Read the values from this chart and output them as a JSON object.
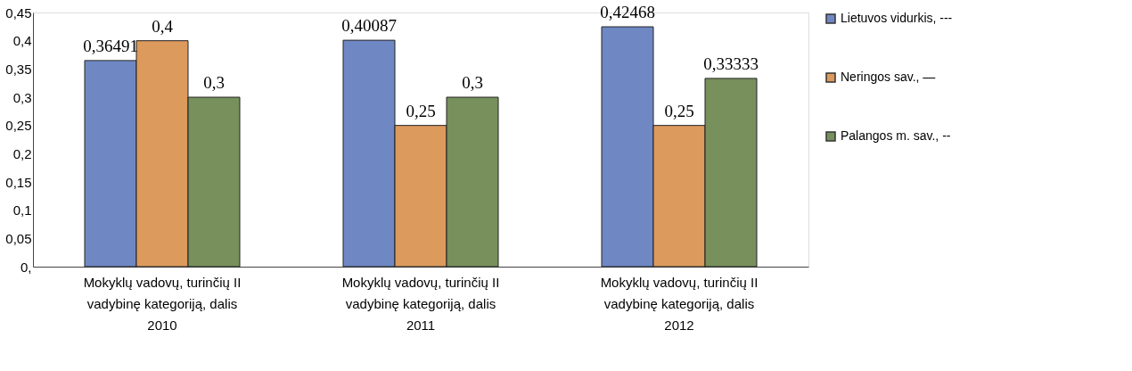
{
  "chart_data": {
    "type": "bar",
    "categories": [
      "Mokyklų vadovų, turinčių II\nvadybinę kategoriją, dalis\n2010",
      "Mokyklų vadovų, turinčių II\nvadybinę kategoriją, dalis\n2011",
      "Mokyklų vadovų, turinčių II\nvadybinę kategoriją, dalis\n2012"
    ],
    "series": [
      {
        "name": "Lietuvos vidurkis, ---",
        "color": "#6f88c4",
        "values": [
          0.36491,
          0.40087,
          0.42468
        ],
        "value_labels": [
          "0,36491",
          "0,40087",
          "0,42468"
        ]
      },
      {
        "name": "Neringos sav., —",
        "color": "#dc9a5c",
        "values": [
          0.4,
          0.25,
          0.25
        ],
        "value_labels": [
          "0,4",
          "0,25",
          "0,25"
        ]
      },
      {
        "name": "Palangos m. sav., --",
        "color": "#77905c",
        "values": [
          0.3,
          0.3,
          0.33333
        ],
        "value_labels": [
          "0,3",
          "0,3",
          "0,33333"
        ]
      }
    ],
    "ylim": [
      0,
      0.45
    ],
    "yticks": [
      {
        "value": 0,
        "label": "0,"
      },
      {
        "value": 0.05,
        "label": "0,05"
      },
      {
        "value": 0.1,
        "label": "0,1"
      },
      {
        "value": 0.15,
        "label": "0,15"
      },
      {
        "value": 0.2,
        "label": "0,2"
      },
      {
        "value": 0.25,
        "label": "0,25"
      },
      {
        "value": 0.3,
        "label": "0,3"
      },
      {
        "value": 0.35,
        "label": "0,35"
      },
      {
        "value": 0.4,
        "label": "0,4"
      },
      {
        "value": 0.45,
        "label": "0,45"
      }
    ],
    "grid": false,
    "legend": "right"
  }
}
